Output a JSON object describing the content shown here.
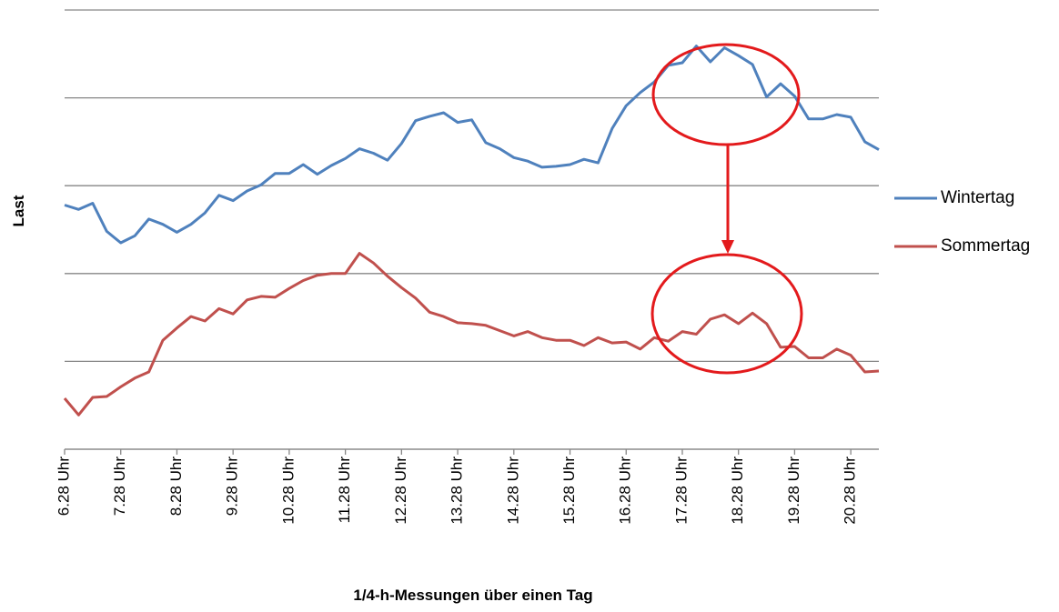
{
  "chart_data": {
    "type": "line",
    "x_label": "1/4-h-Messungen über einen Tag",
    "y_label": "Last",
    "categories": [
      "6.28 Uhr",
      null,
      null,
      null,
      "7.28 Uhr",
      null,
      null,
      null,
      "8.28 Uhr",
      null,
      null,
      null,
      "9.28 Uhr",
      null,
      null,
      null,
      "10.28 Uhr",
      null,
      null,
      null,
      "11.28 Uhr",
      null,
      null,
      null,
      "12.28 Uhr",
      null,
      null,
      null,
      "13.28 Uhr",
      null,
      null,
      null,
      "14.28 Uhr",
      null,
      null,
      null,
      "15.28 Uhr",
      null,
      null,
      null,
      "16.28 Uhr",
      null,
      null,
      null,
      "17.28 Uhr",
      null,
      null,
      null,
      "18.28 Uhr",
      null,
      null,
      null,
      "19.28 Uhr",
      null,
      null,
      null,
      "20.28 Uhr",
      null,
      null
    ],
    "series": [
      {
        "name": "Wintertag",
        "color": "#4f81bd",
        "values": [
          2.78,
          2.73,
          2.8,
          2.48,
          2.35,
          2.43,
          2.62,
          2.56,
          2.47,
          2.56,
          2.69,
          2.89,
          2.83,
          2.94,
          3.01,
          3.14,
          3.14,
          3.24,
          3.13,
          3.23,
          3.31,
          3.42,
          3.37,
          3.29,
          3.48,
          3.74,
          3.79,
          3.83,
          3.72,
          3.75,
          3.49,
          3.42,
          3.32,
          3.28,
          3.21,
          3.22,
          3.24,
          3.3,
          3.26,
          3.65,
          3.91,
          4.06,
          4.18,
          4.37,
          4.4,
          4.59,
          4.41,
          4.57,
          4.48,
          4.38,
          4.01,
          4.16,
          4.02,
          3.76,
          3.76,
          3.81,
          3.78,
          3.5,
          3.41
        ]
      },
      {
        "name": "Sommertag",
        "color": "#c0504d",
        "values": [
          0.58,
          0.39,
          0.59,
          0.6,
          0.71,
          0.81,
          0.88,
          1.24,
          1.38,
          1.51,
          1.46,
          1.6,
          1.54,
          1.7,
          1.74,
          1.73,
          1.83,
          1.92,
          1.98,
          2.0,
          2.0,
          2.23,
          2.12,
          1.97,
          1.84,
          1.72,
          1.56,
          1.51,
          1.44,
          1.43,
          1.41,
          1.35,
          1.29,
          1.34,
          1.27,
          1.24,
          1.24,
          1.18,
          1.27,
          1.21,
          1.22,
          1.14,
          1.27,
          1.23,
          1.34,
          1.31,
          1.48,
          1.53,
          1.43,
          1.55,
          1.43,
          1.16,
          1.17,
          1.04,
          1.04,
          1.14,
          1.07,
          0.88,
          0.89
        ]
      }
    ],
    "ylim": [
      0,
      5
    ],
    "yticks": [
      0,
      1,
      2,
      3,
      4,
      5
    ],
    "grid": true,
    "legend": "right"
  }
}
